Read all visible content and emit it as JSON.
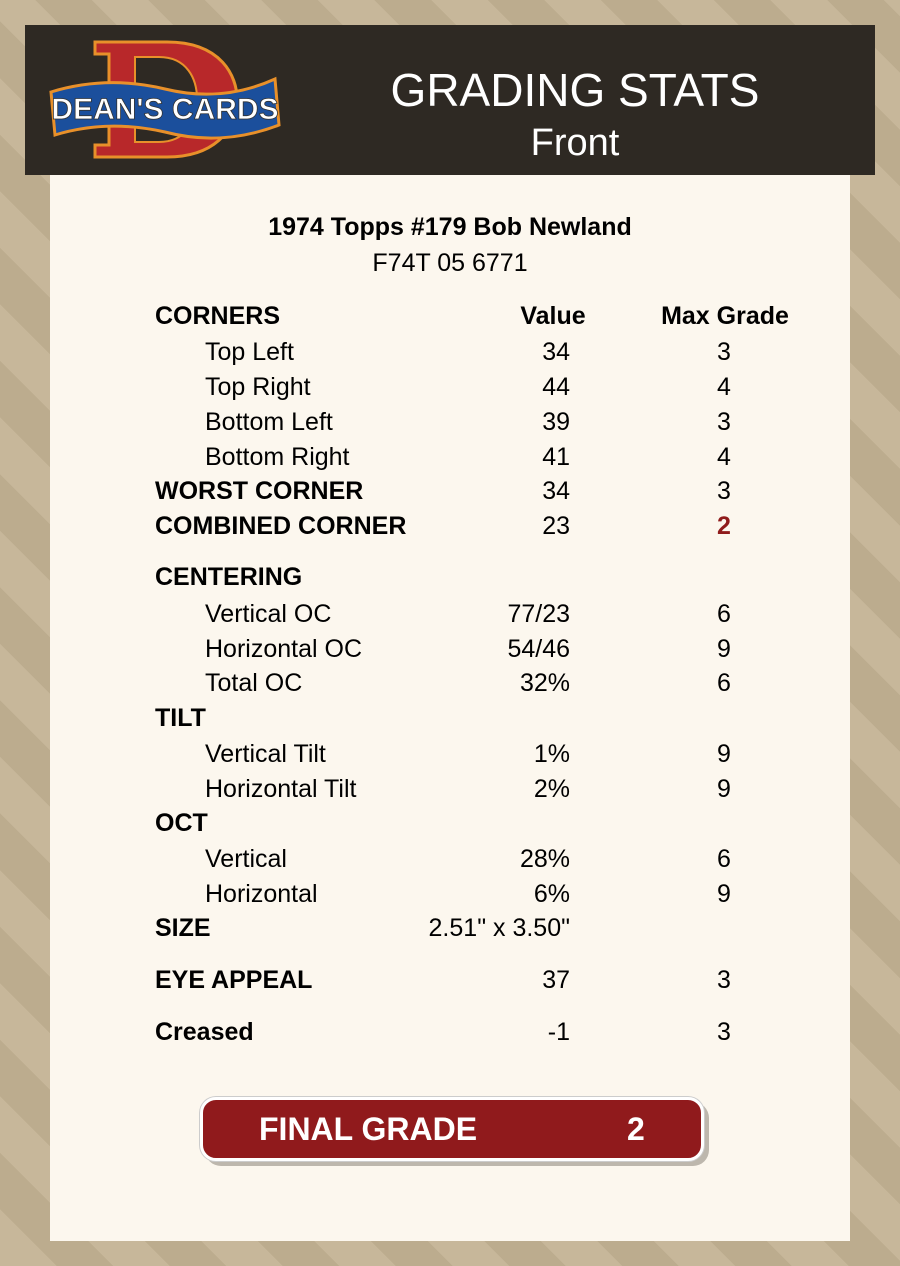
{
  "header": {
    "logo_text": "DEAN'S CARDS",
    "title": "GRADING STATS",
    "subtitle": "Front"
  },
  "card": {
    "name": "1974 Topps #179 Bob Newland",
    "id": "F74T 05 6771"
  },
  "columns": {
    "value": "Value",
    "max": "Max Grade"
  },
  "rows": [
    {
      "label": "CORNERS",
      "bold": true,
      "header": true
    },
    {
      "label": "Top Left",
      "value": "34",
      "max": "3"
    },
    {
      "label": "Top Right",
      "value": "44",
      "max": "4"
    },
    {
      "label": "Bottom Left",
      "value": "39",
      "max": "3"
    },
    {
      "label": "Bottom Right",
      "value": "41",
      "max": "4"
    },
    {
      "label": "WORST CORNER",
      "bold": true,
      "value": "34",
      "max": "3"
    },
    {
      "label": "COMBINED CORNER",
      "bold": true,
      "value": "23",
      "max": "2",
      "highlight": true
    },
    {
      "label": "CENTERING",
      "bold": true
    },
    {
      "label": "Vertical OC",
      "value": "77/23",
      "max": "6"
    },
    {
      "label": "Horizontal OC",
      "value": "54/46",
      "max": "9"
    },
    {
      "label": "Total OC",
      "value": "32%",
      "max": "6"
    },
    {
      "label": "TILT",
      "bold": true
    },
    {
      "label": "Vertical Tilt",
      "value": "1%",
      "max": "9"
    },
    {
      "label": "Horizontal Tilt",
      "value": "2%",
      "max": "9"
    },
    {
      "label": "OCT",
      "bold": true
    },
    {
      "label": "Vertical",
      "value": "28%",
      "max": "6"
    },
    {
      "label": "Horizontal",
      "value": "6%",
      "max": "9"
    },
    {
      "label": "SIZE",
      "bold": true,
      "value": "2.51\" x 3.50\""
    },
    {
      "label": "EYE APPEAL",
      "bold": true,
      "value": "37",
      "max": "3"
    },
    {
      "label": "Creased",
      "bold": true,
      "value": "-1",
      "max": "3"
    }
  ],
  "final": {
    "label": "FINAL GRADE",
    "value": "2"
  },
  "colors": {
    "header_bg": "#2e2923",
    "accent_red": "#901a1c",
    "panel": "#fcf7ee"
  }
}
